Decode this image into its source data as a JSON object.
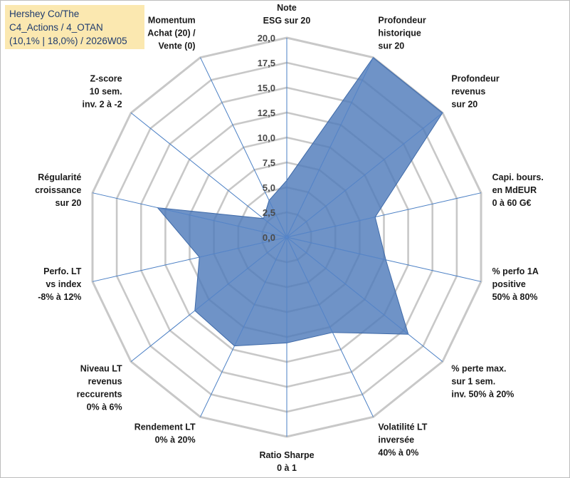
{
  "title_lines": [
    "Hershey Co/The",
    "C4_Actions / 4_OTAN",
    "(10,1% | 18,0%) / 2026W05"
  ],
  "chart_data": {
    "type": "radar",
    "title": "Hershey Co/The C4_Actions / 4_OTAN (10,1% | 18,0%) / 2026W05",
    "rmin": 0,
    "rmax": 20,
    "tick_values": [
      0,
      2.5,
      5,
      7.5,
      10,
      12.5,
      15,
      17.5,
      20
    ],
    "tick_labels": [
      "0,0",
      "2,5",
      "5,0",
      "7,5",
      "10,0",
      "12,5",
      "15,0",
      "17,5",
      "20,0"
    ],
    "fill_color": "#4f7bbb",
    "grid_color": "#c8c8c8",
    "spoke_color": "#4a7fc4",
    "axes": [
      {
        "label_lines": [
          "Note",
          "ESG sur 20"
        ],
        "value": 5.7
      },
      {
        "label_lines": [
          "Profondeur",
          "historique",
          "sur 20"
        ],
        "value": 20.0
      },
      {
        "label_lines": [
          "Profondeur",
          "revenus",
          "sur 20"
        ],
        "value": 20.0
      },
      {
        "label_lines": [
          "Capi. bours.",
          "en MdEUR",
          "0 à 60 G€"
        ],
        "value": 9.1
      },
      {
        "label_lines": [
          "% perfo 1A",
          "positive",
          "50% à 80%"
        ],
        "value": 10.2
      },
      {
        "label_lines": [
          "% perte max.",
          "sur 1 sem.",
          "inv. 50% à 20%"
        ],
        "value": 15.6
      },
      {
        "label_lines": [
          "Volatilité LT",
          "inversée",
          "40% à 0%"
        ],
        "value": 10.6
      },
      {
        "label_lines": [
          "Ratio Sharpe",
          "0 à 1"
        ],
        "value": 10.6
      },
      {
        "label_lines": [
          "Rendement LT",
          "0% à 20%"
        ],
        "value": 12.1
      },
      {
        "label_lines": [
          "Niveau LT",
          "revenus",
          "reccurents",
          "0% à 6%"
        ],
        "value": 11.8
      },
      {
        "label_lines": [
          "Perfo. LT",
          "vs index",
          "-8% à 12%"
        ],
        "value": 9.0
      },
      {
        "label_lines": [
          "Régularité",
          "croissance",
          "sur 20"
        ],
        "value": 13.3
      },
      {
        "label_lines": [
          "Z-score",
          "10 sem.",
          "inv. 2 à -2"
        ],
        "value": 3.0
      },
      {
        "label_lines": [
          "Momentum",
          "Achat (20) /",
          "Vente (0)"
        ],
        "value": 4.1
      }
    ]
  }
}
